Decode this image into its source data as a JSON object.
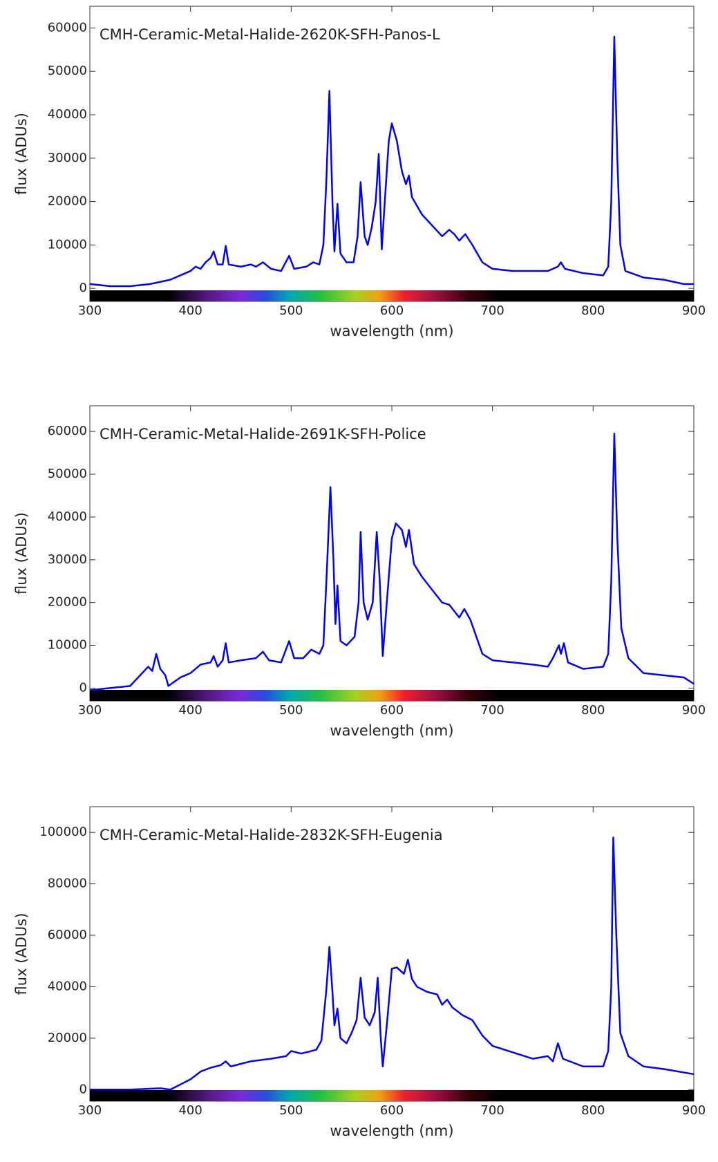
{
  "chart_data": [
    {
      "type": "line",
      "title": "CMH-Ceramic-Metal-Halide-2620K-SFH-Panos-L",
      "xlabel": "wavelength (nm)",
      "ylabel": "flux (ADUs)",
      "xlim": [
        300,
        900
      ],
      "xticks": [
        300,
        400,
        500,
        600,
        700,
        800,
        900
      ],
      "ylim": [
        -3000,
        65000
      ],
      "yticks": [
        0,
        10000,
        20000,
        30000,
        40000,
        50000,
        60000
      ],
      "x": [
        300,
        320,
        340,
        360,
        380,
        390,
        400,
        405,
        410,
        415,
        420,
        423,
        427,
        432,
        435,
        438,
        450,
        460,
        465,
        472,
        480,
        490,
        498,
        503,
        515,
        522,
        528,
        532,
        535,
        538,
        541,
        543,
        546,
        549,
        555,
        562,
        566,
        569,
        573,
        576,
        580,
        584,
        587,
        590,
        593,
        597,
        600,
        605,
        610,
        614,
        617,
        620,
        630,
        640,
        650,
        657,
        662,
        667,
        673,
        680,
        690,
        700,
        720,
        740,
        755,
        760,
        765,
        768,
        772,
        790,
        810,
        815,
        818,
        821,
        824,
        827,
        832,
        850,
        870,
        890,
        900
      ],
      "series": [
        {
          "color": "#0000ff",
          "values": [
            1000,
            500,
            500,
            1000,
            2000,
            3000,
            4000,
            5000,
            4500,
            6000,
            7000,
            8500,
            5500,
            5500,
            9800,
            5500,
            5000,
            5500,
            5000,
            6000,
            4500,
            4000,
            7500,
            4500,
            5000,
            6000,
            5500,
            10000,
            25000,
            45500,
            20000,
            8500,
            19500,
            8000,
            6000,
            6000,
            12000,
            24500,
            12000,
            10000,
            14000,
            20000,
            31000,
            9000,
            20000,
            34000,
            38000,
            34000,
            27000,
            24000,
            26000,
            21000,
            17000,
            14500,
            12000,
            13500,
            12500,
            11000,
            12500,
            10000,
            6000,
            4500,
            4000,
            4000,
            4000,
            4500,
            5000,
            6000,
            4500,
            3500,
            3000,
            5000,
            20000,
            58000,
            30000,
            10000,
            4000,
            2500,
            2000,
            1000,
            1000
          ]
        }
      ]
    },
    {
      "type": "line",
      "title": "CMH-Ceramic-Metal-Halide-2691K-SFH-Police",
      "xlabel": "wavelength (nm)",
      "ylabel": "flux (ADUs)",
      "xlim": [
        300,
        900
      ],
      "xticks": [
        300,
        400,
        500,
        600,
        700,
        800,
        900
      ],
      "ylim": [
        -3000,
        66000
      ],
      "yticks": [
        0,
        10000,
        20000,
        30000,
        40000,
        50000,
        60000
      ],
      "x": [
        300,
        320,
        340,
        350,
        358,
        362,
        366,
        370,
        375,
        378,
        381,
        390,
        400,
        410,
        420,
        423,
        427,
        432,
        435,
        438,
        450,
        465,
        472,
        478,
        490,
        498,
        503,
        512,
        520,
        528,
        532,
        535,
        539,
        542,
        544,
        546,
        549,
        555,
        563,
        567,
        569,
        572,
        576,
        581,
        585,
        588,
        591,
        595,
        600,
        604,
        610,
        614,
        617,
        622,
        630,
        640,
        650,
        657,
        662,
        667,
        672,
        678,
        690,
        700,
        720,
        740,
        755,
        760,
        766,
        768,
        771,
        775,
        790,
        810,
        815,
        818,
        821,
        824,
        828,
        835,
        850,
        870,
        890,
        900
      ],
      "series": [
        {
          "color": "#0000ff",
          "values": [
            -500,
            0,
            500,
            3000,
            5000,
            4000,
            8000,
            4500,
            3000,
            500,
            1000,
            2500,
            3500,
            5500,
            6000,
            7500,
            5000,
            6500,
            10500,
            6000,
            6500,
            7000,
            8500,
            6500,
            6000,
            11000,
            7000,
            7000,
            9000,
            8000,
            10000,
            25000,
            47000,
            30000,
            15000,
            24000,
            11000,
            10000,
            12000,
            20000,
            36500,
            20000,
            16000,
            20000,
            36500,
            25000,
            7500,
            20000,
            35000,
            38500,
            37000,
            33000,
            37000,
            29000,
            26000,
            23000,
            20000,
            19500,
            18000,
            16500,
            18500,
            16000,
            8000,
            6500,
            6000,
            5500,
            5000,
            7000,
            10000,
            8000,
            10500,
            6000,
            4500,
            5000,
            8000,
            25000,
            59500,
            35000,
            14000,
            7000,
            3500,
            3000,
            2500,
            1000
          ]
        }
      ]
    },
    {
      "type": "line",
      "title": "CMH-Ceramic-Metal-Halide-2832K-SFH-Eugenia",
      "xlabel": "wavelength (nm)",
      "ylabel": "flux (ADUs)",
      "xlim": [
        300,
        900
      ],
      "xticks": [
        300,
        400,
        500,
        600,
        700,
        800,
        900
      ],
      "ylim": [
        -4500,
        110000
      ],
      "yticks": [
        0,
        20000,
        40000,
        60000,
        80000,
        100000
      ],
      "x": [
        300,
        340,
        370,
        380,
        390,
        400,
        410,
        420,
        430,
        435,
        440,
        460,
        480,
        495,
        500,
        510,
        525,
        530,
        535,
        538,
        541,
        543,
        546,
        549,
        555,
        560,
        565,
        569,
        573,
        578,
        583,
        586,
        589,
        591,
        595,
        600,
        605,
        612,
        616,
        620,
        625,
        635,
        645,
        650,
        655,
        660,
        670,
        680,
        685,
        690,
        700,
        720,
        740,
        755,
        760,
        765,
        770,
        790,
        810,
        815,
        818,
        820,
        823,
        827,
        835,
        850,
        870,
        900
      ],
      "series": [
        {
          "color": "#0000ff",
          "values": [
            0,
            0,
            500,
            0,
            2000,
            4000,
            7000,
            8500,
            9500,
            11000,
            9000,
            11000,
            12000,
            13000,
            15000,
            14000,
            15500,
            19000,
            39000,
            55500,
            38000,
            25000,
            31500,
            20000,
            18000,
            22000,
            27000,
            43500,
            28000,
            25000,
            30000,
            43500,
            20000,
            9000,
            25000,
            47000,
            47500,
            45000,
            50500,
            43000,
            40000,
            38000,
            37000,
            33000,
            35000,
            32000,
            29000,
            27000,
            24000,
            21000,
            17000,
            14500,
            12000,
            13000,
            11000,
            18000,
            12000,
            9000,
            9000,
            15000,
            40000,
            98000,
            60000,
            22000,
            13000,
            9000,
            8000,
            6000
          ]
        }
      ]
    }
  ]
}
